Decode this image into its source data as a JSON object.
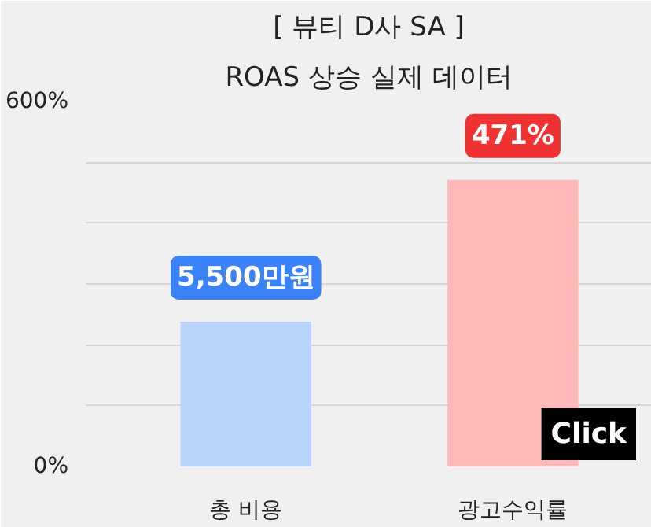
{
  "chart_data": {
    "type": "bar",
    "title": "[ 뷰티 D사 SA ]",
    "subtitle": "ROAS 상승 실제 데이터",
    "categories": [
      "총 비용",
      "광고수익률"
    ],
    "values": [
      238,
      471
    ],
    "colors": [
      "#b9d4fb",
      "#ffb8b8"
    ],
    "value_labels": [
      null,
      "471%"
    ],
    "ylim": [
      0,
      600
    ],
    "yticks": [
      {
        "value": 0,
        "label": "0%"
      },
      {
        "value": 100,
        "label": null
      },
      {
        "value": 200,
        "label": null
      },
      {
        "value": 300,
        "label": null
      },
      {
        "value": 400,
        "label": null
      },
      {
        "value": 500,
        "label": null
      },
      {
        "value": 600,
        "label": "600%"
      }
    ],
    "grid": "y",
    "annotations": [
      {
        "text": "5,500만원",
        "x": "총 비용",
        "y": 238
      },
      "Click"
    ]
  }
}
